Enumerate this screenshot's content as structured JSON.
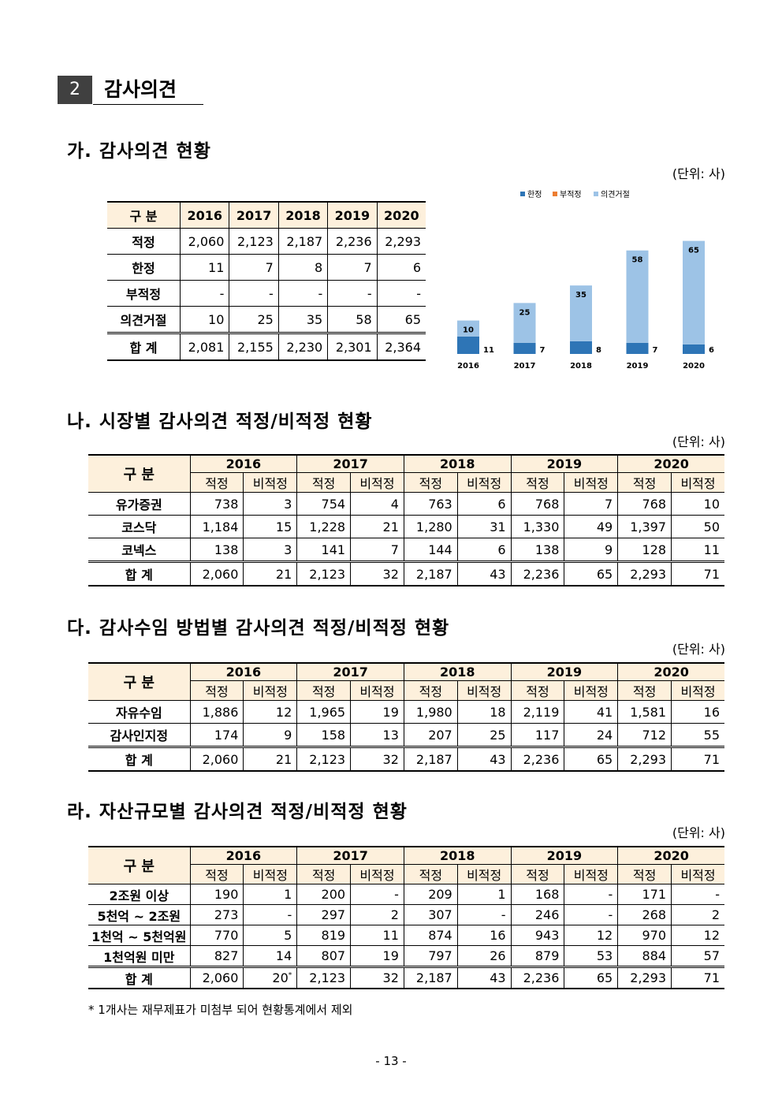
{
  "section": {
    "number": "2",
    "title": "감사의견"
  },
  "unit": "(단위: 사)",
  "ga": {
    "title": "가. 감사의견 현황",
    "headers": [
      "구 분",
      "2016",
      "2017",
      "2018",
      "2019",
      "2020"
    ],
    "rows": [
      {
        "label": "적정",
        "values": [
          "2,060",
          "2,123",
          "2,187",
          "2,236",
          "2,293"
        ]
      },
      {
        "label": "한정",
        "values": [
          "11",
          "7",
          "8",
          "7",
          "6"
        ]
      },
      {
        "label": "부적정",
        "values": [
          "-",
          "-",
          "-",
          "-",
          "-"
        ]
      },
      {
        "label": "의견거절",
        "values": [
          "10",
          "25",
          "35",
          "58",
          "65"
        ]
      }
    ],
    "total": {
      "label": "합 계",
      "values": [
        "2,081",
        "2,155",
        "2,230",
        "2,301",
        "2,364"
      ]
    }
  },
  "chart_data": {
    "type": "bar",
    "stacked": true,
    "categories": [
      "2016",
      "2017",
      "2018",
      "2019",
      "2020"
    ],
    "series": [
      {
        "name": "한정",
        "color": "#2e75b6",
        "values": [
          11,
          7,
          8,
          7,
          6
        ]
      },
      {
        "name": "부적정",
        "color": "#ed7d31",
        "values": [
          0,
          0,
          0,
          0,
          0
        ]
      },
      {
        "name": "의견거절",
        "color": "#9dc3e6",
        "values": [
          10,
          25,
          35,
          58,
          65
        ]
      }
    ],
    "legend_position": "top-right",
    "grid": false
  },
  "na": {
    "title": "나. 시장별 감사의견 적정/비적정 현황",
    "years": [
      "2016",
      "2017",
      "2018",
      "2019",
      "2020"
    ],
    "gubun": "구 분",
    "sub": [
      "적정",
      "비적정"
    ],
    "rows": [
      {
        "label": "유가증권",
        "values": [
          "738",
          "3",
          "754",
          "4",
          "763",
          "6",
          "768",
          "7",
          "768",
          "10"
        ]
      },
      {
        "label": "코스닥",
        "values": [
          "1,184",
          "15",
          "1,228",
          "21",
          "1,280",
          "31",
          "1,330",
          "49",
          "1,397",
          "50"
        ]
      },
      {
        "label": "코넥스",
        "values": [
          "138",
          "3",
          "141",
          "7",
          "144",
          "6",
          "138",
          "9",
          "128",
          "11"
        ]
      }
    ],
    "total": {
      "label": "합 계",
      "values": [
        "2,060",
        "21",
        "2,123",
        "32",
        "2,187",
        "43",
        "2,236",
        "65",
        "2,293",
        "71"
      ]
    }
  },
  "da": {
    "title": "다. 감사수임 방법별 감사의견 적정/비적정 현황",
    "rows": [
      {
        "label": "자유수임",
        "values": [
          "1,886",
          "12",
          "1,965",
          "19",
          "1,980",
          "18",
          "2,119",
          "41",
          "1,581",
          "16"
        ]
      },
      {
        "label": "감사인지정",
        "values": [
          "174",
          "9",
          "158",
          "13",
          "207",
          "25",
          "117",
          "24",
          "712",
          "55"
        ]
      }
    ],
    "total": {
      "label": "합 계",
      "values": [
        "2,060",
        "21",
        "2,123",
        "32",
        "2,187",
        "43",
        "2,236",
        "65",
        "2,293",
        "71"
      ]
    }
  },
  "ra": {
    "title": "라. 자산규모별 감사의견 적정/비적정 현황",
    "rows": [
      {
        "label": "2조원 이상",
        "values": [
          "190",
          "1",
          "200",
          "-",
          "209",
          "1",
          "168",
          "-",
          "171",
          "-"
        ]
      },
      {
        "label": "5천억 ~ 2조원",
        "values": [
          "273",
          "-",
          "297",
          "2",
          "307",
          "-",
          "246",
          "-",
          "268",
          "2"
        ]
      },
      {
        "label": "1천억 ~ 5천억원",
        "values": [
          "770",
          "5",
          "819",
          "11",
          "874",
          "16",
          "943",
          "12",
          "970",
          "12"
        ]
      },
      {
        "label": "1천억원 미만",
        "values": [
          "827",
          "14",
          "807",
          "19",
          "797",
          "26",
          "879",
          "53",
          "884",
          "57"
        ]
      }
    ],
    "total": {
      "label": "합 계",
      "values": [
        "2,060",
        "20",
        "2,123",
        "32",
        "2,187",
        "43",
        "2,236",
        "65",
        "2,293",
        "71"
      ]
    },
    "total_mark": "*",
    "footnote": "* 1개사는 재무제표가 미첨부 되어 현황통계에서 제외"
  },
  "page_number": "- 13 -"
}
